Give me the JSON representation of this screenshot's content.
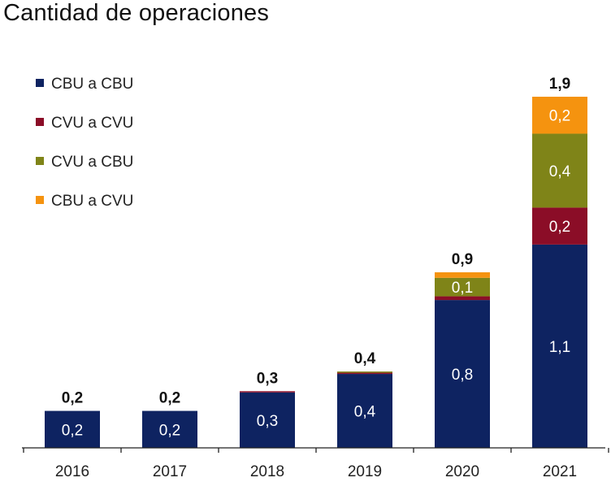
{
  "chart_data": {
    "type": "bar",
    "stacked": true,
    "title": "Cantidad de operaciones",
    "xlabel": "",
    "ylabel": "",
    "ylim": [
      0,
      1.9
    ],
    "categories": [
      "2016",
      "2017",
      "2018",
      "2019",
      "2020",
      "2021"
    ],
    "series": [
      {
        "name": "CBU a CBU",
        "color": "#0E2361",
        "values": [
          0.2,
          0.2,
          0.3,
          0.4,
          0.8,
          1.1
        ],
        "labels": [
          "0,2",
          "0,2",
          "0,3",
          "0,4",
          "0,8",
          "1,1"
        ]
      },
      {
        "name": "CVU a CVU",
        "color": "#8B0D27",
        "values": [
          0,
          0,
          0.002,
          0.003,
          0.02,
          0.2
        ],
        "labels": [
          "",
          "",
          "",
          "",
          "",
          "0,2"
        ]
      },
      {
        "name": "CVU a CBU",
        "color": "#7F8418",
        "values": [
          0,
          0,
          0,
          0.003,
          0.1,
          0.4
        ],
        "labels": [
          "",
          "",
          "",
          "",
          "0,1",
          "0,4"
        ]
      },
      {
        "name": "CBU a CVU",
        "color": "#F5930F",
        "values": [
          0,
          0,
          0,
          0,
          0.03,
          0.2
        ],
        "labels": [
          "",
          "",
          "",
          "",
          "",
          "0,2"
        ]
      }
    ],
    "totals": [
      "0,2",
      "0,2",
      "0,3",
      "0,4",
      "0,9",
      "1,9"
    ],
    "legend": "top-left"
  }
}
